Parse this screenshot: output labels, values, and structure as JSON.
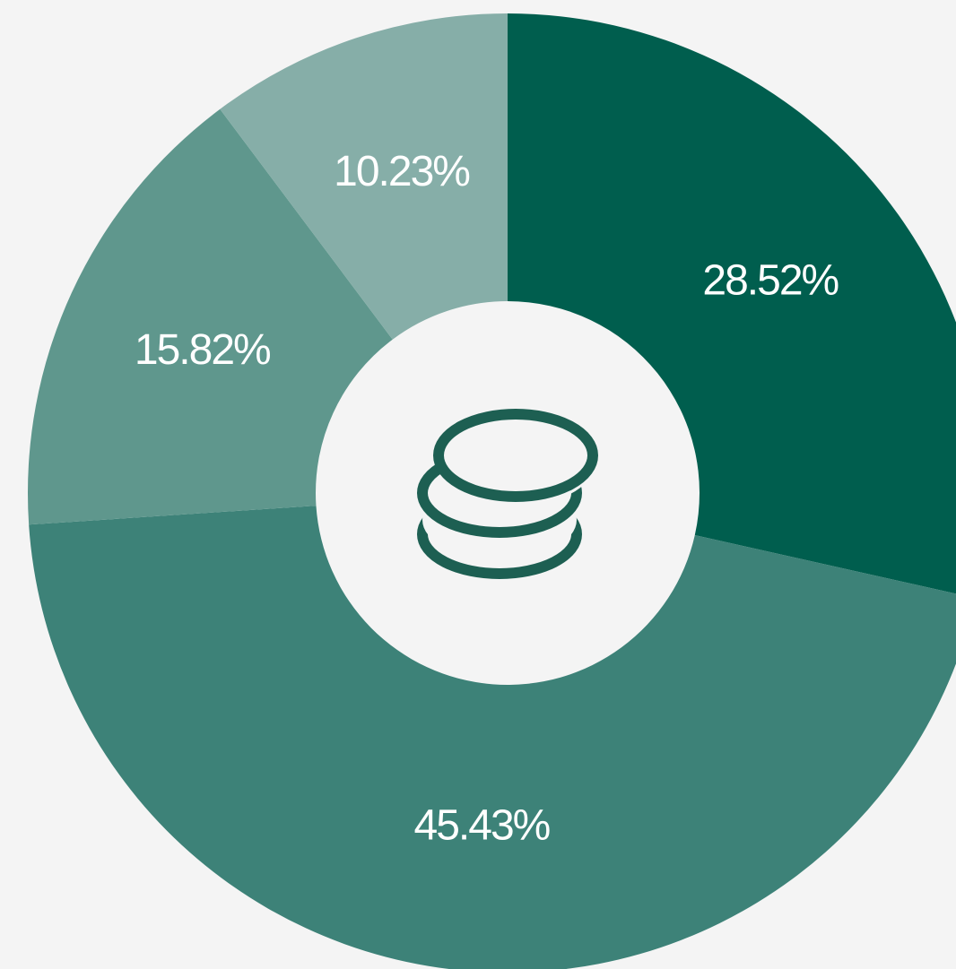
{
  "chart_data": {
    "type": "donut",
    "categories": [
      null,
      null,
      null,
      null
    ],
    "values": [
      28.52,
      45.43,
      15.82,
      10.23
    ],
    "value_labels": [
      "28.52%",
      "45.43%",
      "15.82%",
      "10.23%"
    ],
    "colors": [
      "#005e4e",
      "#3d8278",
      "#5f978d",
      "#86aea8"
    ]
  }
}
